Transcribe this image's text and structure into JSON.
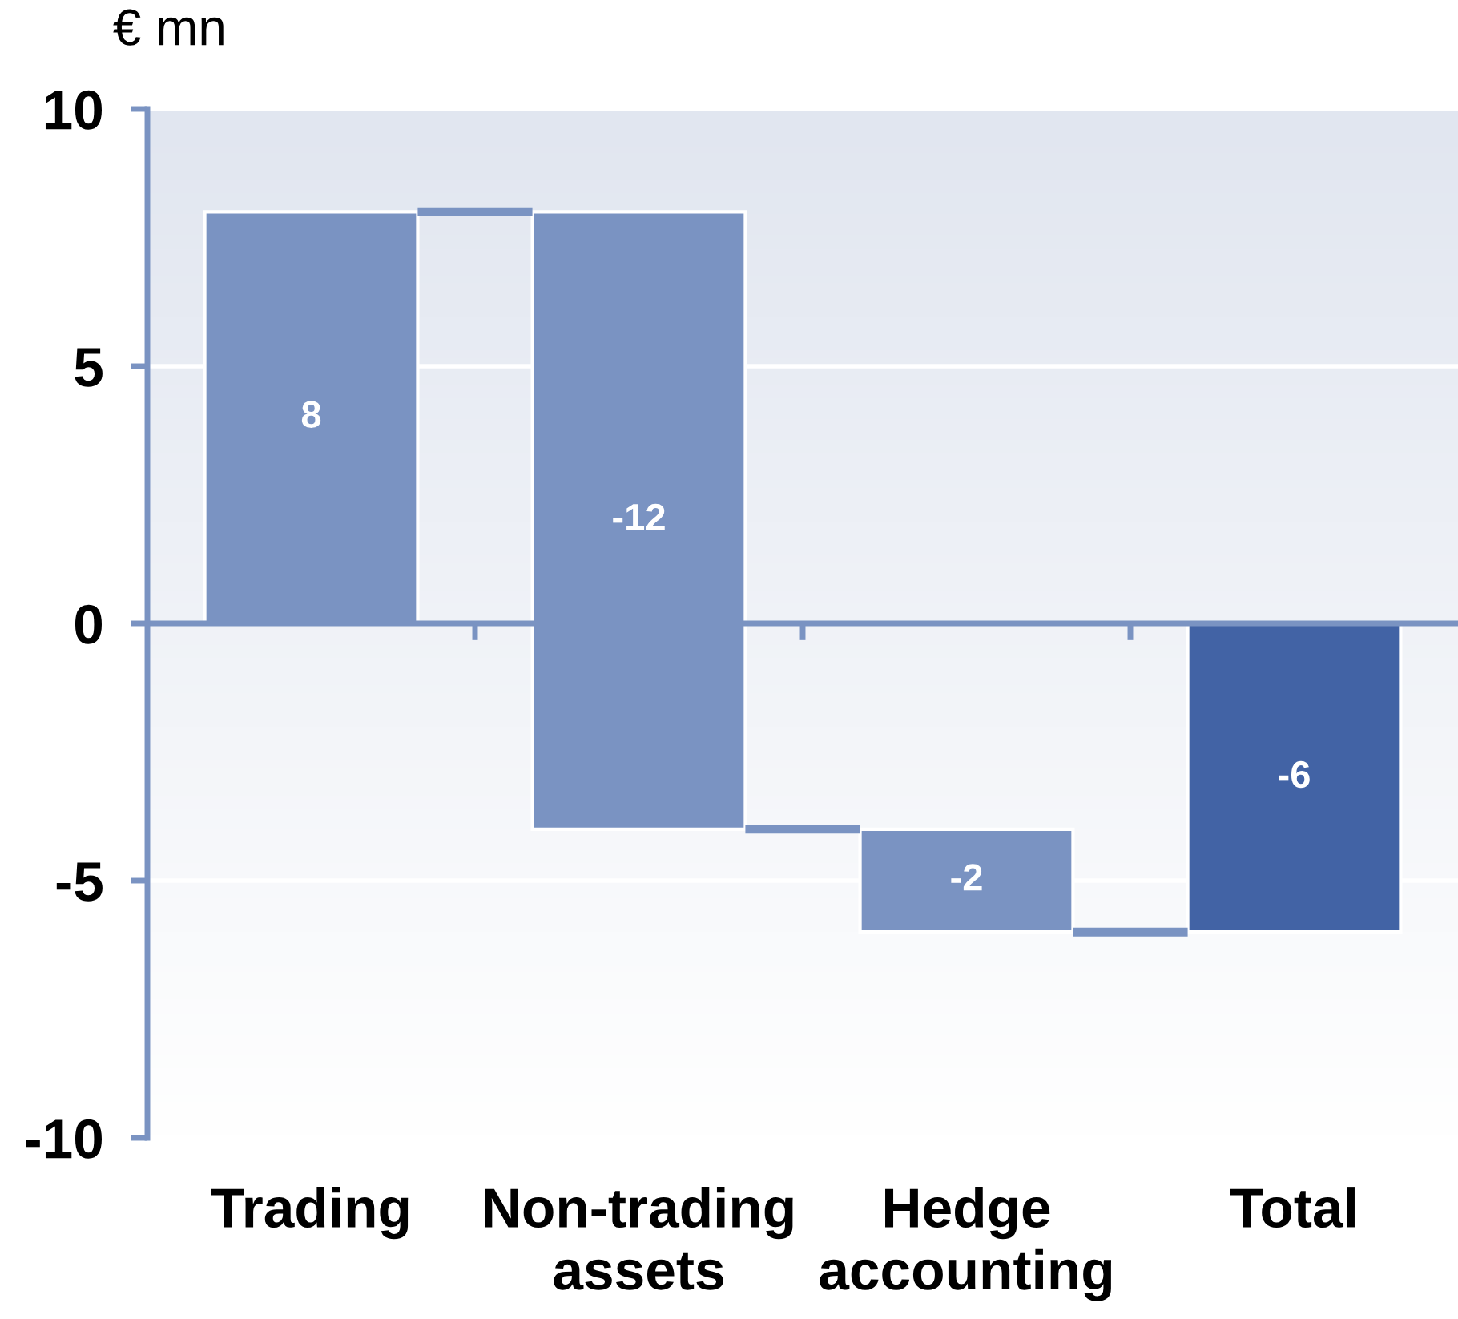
{
  "chart_data": {
    "type": "bar",
    "ylabel": "€ mn",
    "categories": [
      "Trading",
      "Non-trading\nassets",
      "Hedge\naccounting",
      "Total"
    ],
    "values": [
      8,
      -12,
      -2,
      -6
    ],
    "base": [
      0,
      8,
      -4,
      0
    ],
    "colors": [
      "#7a93c2",
      "#7a93c2",
      "#7a93c2",
      "#4263a5"
    ],
    "ylim": [
      -10,
      10
    ],
    "yticks": [
      -10,
      -5,
      0,
      5,
      10
    ],
    "grid": "y",
    "data_labels": true,
    "ref_lines": [
      {
        "axis": "y",
        "value": 0,
        "color": "#7a93c2"
      }
    ]
  }
}
